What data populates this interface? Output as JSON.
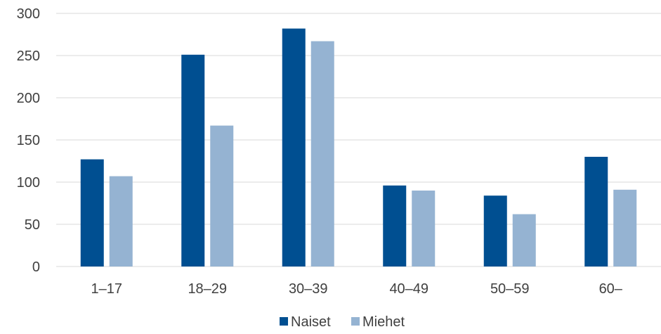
{
  "chart_data": {
    "type": "bar",
    "title": "",
    "xlabel": "",
    "ylabel": "",
    "ylim": [
      0,
      300
    ],
    "yticks": [
      0,
      50,
      100,
      150,
      200,
      250,
      300
    ],
    "grid": true,
    "legend_position": "bottom",
    "categories": [
      "1–17",
      "18–29",
      "30–39",
      "40–49",
      "50–59",
      "60–"
    ],
    "series": [
      {
        "name": "Naiset",
        "color": "#004F91",
        "values": [
          127,
          251,
          282,
          96,
          84,
          130
        ]
      },
      {
        "name": "Miehet",
        "color": "#95B3D2",
        "values": [
          107,
          167,
          267,
          90,
          62,
          91
        ]
      }
    ]
  }
}
